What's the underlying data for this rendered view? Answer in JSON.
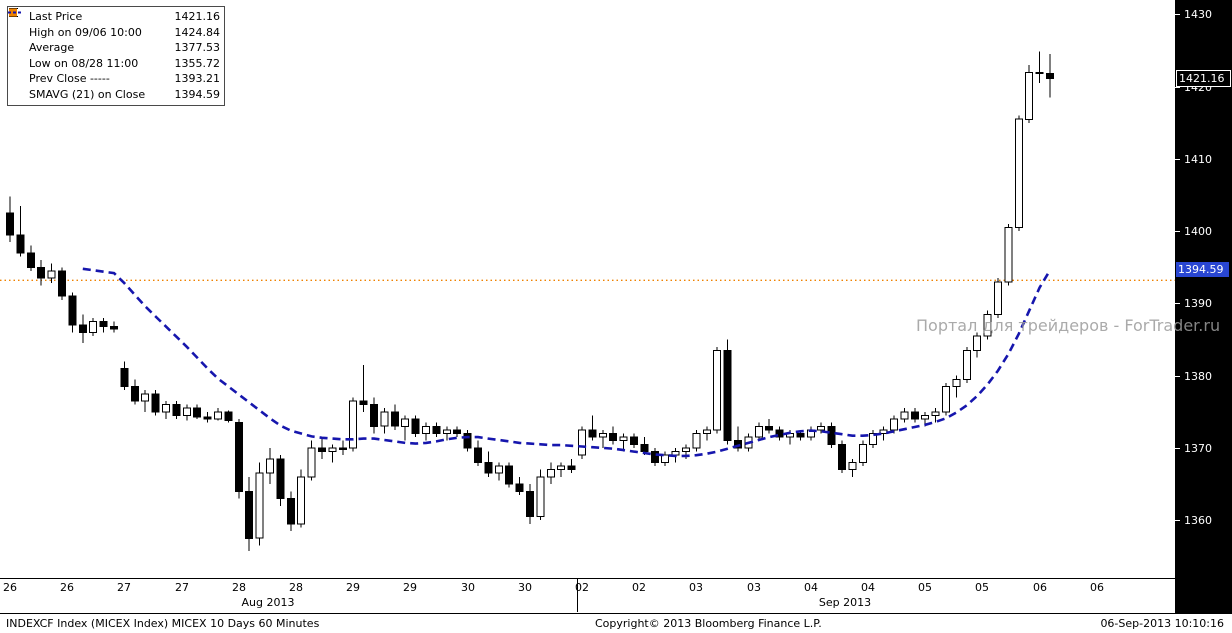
{
  "colors": {
    "up_candle": "#ffffff",
    "down_candle": "#000000",
    "candle_outline": "#000000",
    "prev_close_line": "#ef8200",
    "smavg_line": "#1616ad",
    "axis_bg": "#000000",
    "axis_text": "#ffffff",
    "last_badge_bg": "#000000",
    "smavg_badge_bg": "#2946d2",
    "watermark_text": "#9c9c9c"
  },
  "legend": {
    "rows": [
      {
        "icon": "candle-icon",
        "label": "Last Price",
        "value": "1421.16"
      },
      {
        "icon": "high-icon",
        "label": "High on 09/06 10:00",
        "value": "1424.84"
      },
      {
        "icon": "average-icon",
        "label": "Average",
        "value": "1377.53"
      },
      {
        "icon": "low-icon",
        "label": "Low on 08/28 11:00",
        "value": "1355.72"
      },
      {
        "icon": "prev-close-icon",
        "label": "Prev Close -----",
        "value": "1393.21"
      },
      {
        "icon": "smavg-icon",
        "label": "SMAVG (21) on Close",
        "value": "1394.59"
      }
    ]
  },
  "badges": {
    "last_price": "1421.16",
    "smavg": "1394.59"
  },
  "watermark": "Портал для трейдеров - ForTrader.ru",
  "footer": {
    "left": "INDEXCF Index (MICEX Index) MICEX 10 Days 60 Minutes",
    "center": "Copyright© 2013 Bloomberg Finance L.P.",
    "right": "06-Sep-2013 10:10:16"
  },
  "chart_data": {
    "type": "candlestick",
    "title": "INDEXCF Index (MICEX Index) MICEX 10 Days 60 Minutes",
    "ylim": [
      1352,
      1432
    ],
    "y_ticks": [
      1430,
      1420,
      1410,
      1400,
      1390,
      1380,
      1370,
      1360
    ],
    "last_price": 1421.16,
    "high": {
      "label": "High on 09/06 10:00",
      "value": 1424.84
    },
    "low": {
      "label": "Low on 08/28 11:00",
      "value": 1355.72
    },
    "average": 1377.53,
    "prev_close": 1393.21,
    "smavg_last": 1394.59,
    "x_labels": [
      "26",
      "26",
      "27",
      "27",
      "28",
      "28",
      "29",
      "29",
      "30",
      "30",
      "02",
      "02",
      "03",
      "03",
      "04",
      "04",
      "05",
      "05",
      "06",
      "06"
    ],
    "month_labels": [
      "Aug 2013",
      "Sep 2013"
    ],
    "bars_per_day": 11,
    "candles": [
      [
        1402.5,
        1404.8,
        1398.5,
        1399.5
      ],
      [
        1399.5,
        1403.5,
        1396.5,
        1397.0
      ],
      [
        1397.0,
        1398.0,
        1394.5,
        1395.0
      ],
      [
        1395.0,
        1396.0,
        1392.5,
        1393.5
      ],
      [
        1393.5,
        1395.5,
        1392.8,
        1394.5
      ],
      [
        1394.5,
        1395.0,
        1390.5,
        1391.0
      ],
      [
        1391.0,
        1391.5,
        1386.0,
        1387.0
      ],
      [
        1387.0,
        1388.5,
        1384.5,
        1386.0
      ],
      [
        1386.0,
        1388.0,
        1385.5,
        1387.5
      ],
      [
        1387.5,
        1388.0,
        1386.0,
        1386.8
      ],
      [
        1386.8,
        1387.5,
        1386.0,
        1386.5
      ],
      [
        1381.0,
        1382.0,
        1378.0,
        1378.5
      ],
      [
        1378.5,
        1379.5,
        1376.0,
        1376.5
      ],
      [
        1376.5,
        1378.0,
        1375.0,
        1377.5
      ],
      [
        1377.5,
        1378.0,
        1374.5,
        1375.0
      ],
      [
        1375.0,
        1376.5,
        1374.0,
        1376.0
      ],
      [
        1376.0,
        1376.5,
        1374.0,
        1374.5
      ],
      [
        1374.5,
        1376.0,
        1373.8,
        1375.5
      ],
      [
        1375.5,
        1376.0,
        1374.0,
        1374.3
      ],
      [
        1374.3,
        1375.0,
        1373.5,
        1374.0
      ],
      [
        1374.0,
        1375.5,
        1373.8,
        1375.0
      ],
      [
        1375.0,
        1375.2,
        1373.5,
        1373.8
      ],
      [
        1373.5,
        1374.0,
        1363.0,
        1364.0
      ],
      [
        1364.0,
        1366.0,
        1355.72,
        1357.5
      ],
      [
        1357.5,
        1368.0,
        1356.5,
        1366.5
      ],
      [
        1366.5,
        1370.0,
        1365.0,
        1368.5
      ],
      [
        1368.5,
        1369.0,
        1362.0,
        1363.0
      ],
      [
        1363.0,
        1364.0,
        1358.5,
        1359.5
      ],
      [
        1359.5,
        1367.0,
        1359.0,
        1366.0
      ],
      [
        1366.0,
        1371.0,
        1365.5,
        1370.0
      ],
      [
        1370.0,
        1371.5,
        1368.5,
        1369.5
      ],
      [
        1369.5,
        1370.5,
        1368.0,
        1370.0
      ],
      [
        1370.0,
        1371.0,
        1369.0,
        1369.8
      ],
      [
        1370.0,
        1377.0,
        1369.5,
        1376.5
      ],
      [
        1376.5,
        1381.5,
        1375.0,
        1376.0
      ],
      [
        1376.0,
        1377.0,
        1372.0,
        1373.0
      ],
      [
        1373.0,
        1375.5,
        1372.0,
        1375.0
      ],
      [
        1375.0,
        1376.0,
        1372.5,
        1373.0
      ],
      [
        1373.0,
        1374.5,
        1371.0,
        1374.0
      ],
      [
        1374.0,
        1374.5,
        1371.5,
        1372.0
      ],
      [
        1372.0,
        1373.5,
        1371.0,
        1373.0
      ],
      [
        1373.0,
        1373.5,
        1371.5,
        1372.0
      ],
      [
        1372.0,
        1373.0,
        1371.0,
        1372.5
      ],
      [
        1372.5,
        1373.0,
        1371.5,
        1372.0
      ],
      [
        1372.0,
        1372.5,
        1369.5,
        1370.0
      ],
      [
        1370.0,
        1371.0,
        1367.5,
        1368.0
      ],
      [
        1368.0,
        1369.5,
        1366.0,
        1366.5
      ],
      [
        1366.5,
        1368.0,
        1365.5,
        1367.5
      ],
      [
        1367.5,
        1368.0,
        1364.5,
        1365.0
      ],
      [
        1365.0,
        1366.0,
        1363.5,
        1364.0
      ],
      [
        1364.0,
        1365.0,
        1359.5,
        1360.5
      ],
      [
        1360.5,
        1367.0,
        1360.0,
        1366.0
      ],
      [
        1366.0,
        1368.0,
        1365.0,
        1367.0
      ],
      [
        1367.0,
        1368.0,
        1366.0,
        1367.5
      ],
      [
        1367.5,
        1368.5,
        1366.5,
        1367.0
      ],
      [
        1369.0,
        1373.0,
        1368.5,
        1372.5
      ],
      [
        1372.5,
        1374.5,
        1371.0,
        1371.5
      ],
      [
        1371.5,
        1372.5,
        1370.0,
        1372.0
      ],
      [
        1372.0,
        1373.0,
        1370.5,
        1371.0
      ],
      [
        1371.0,
        1372.0,
        1369.5,
        1371.5
      ],
      [
        1371.5,
        1372.0,
        1370.0,
        1370.5
      ],
      [
        1370.5,
        1371.5,
        1369.0,
        1369.5
      ],
      [
        1369.5,
        1370.0,
        1367.5,
        1368.0
      ],
      [
        1368.0,
        1369.5,
        1367.5,
        1369.0
      ],
      [
        1369.0,
        1370.0,
        1368.0,
        1369.5
      ],
      [
        1369.5,
        1370.5,
        1368.5,
        1370.0
      ],
      [
        1370.0,
        1372.5,
        1369.5,
        1372.0
      ],
      [
        1372.0,
        1373.0,
        1371.0,
        1372.5
      ],
      [
        1372.5,
        1384.0,
        1372.0,
        1383.5
      ],
      [
        1383.5,
        1385.0,
        1370.5,
        1371.0
      ],
      [
        1371.0,
        1373.0,
        1369.5,
        1370.0
      ],
      [
        1370.0,
        1372.0,
        1369.5,
        1371.5
      ],
      [
        1371.5,
        1373.5,
        1371.0,
        1373.0
      ],
      [
        1373.0,
        1374.0,
        1372.0,
        1372.5
      ],
      [
        1372.5,
        1373.0,
        1371.0,
        1371.5
      ],
      [
        1371.5,
        1372.5,
        1370.5,
        1372.0
      ],
      [
        1372.0,
        1372.5,
        1371.0,
        1371.5
      ],
      [
        1371.5,
        1373.0,
        1371.0,
        1372.5
      ],
      [
        1372.5,
        1373.5,
        1372.0,
        1373.0
      ],
      [
        1373.0,
        1373.5,
        1370.0,
        1370.5
      ],
      [
        1370.5,
        1371.0,
        1366.5,
        1367.0
      ],
      [
        1367.0,
        1368.5,
        1366.0,
        1368.0
      ],
      [
        1368.0,
        1371.0,
        1367.5,
        1370.5
      ],
      [
        1370.5,
        1372.5,
        1370.0,
        1372.0
      ],
      [
        1372.0,
        1373.0,
        1371.0,
        1372.5
      ],
      [
        1372.5,
        1374.5,
        1372.0,
        1374.0
      ],
      [
        1374.0,
        1375.5,
        1373.5,
        1375.0
      ],
      [
        1375.0,
        1375.5,
        1373.5,
        1374.0
      ],
      [
        1374.0,
        1375.0,
        1373.0,
        1374.5
      ],
      [
        1374.5,
        1375.5,
        1373.5,
        1375.0
      ],
      [
        1375.0,
        1379.0,
        1374.5,
        1378.5
      ],
      [
        1378.5,
        1380.0,
        1377.0,
        1379.5
      ],
      [
        1379.5,
        1384.0,
        1379.0,
        1383.5
      ],
      [
        1383.5,
        1386.0,
        1382.5,
        1385.5
      ],
      [
        1385.5,
        1389.0,
        1385.0,
        1388.5
      ],
      [
        1388.5,
        1393.5,
        1388.0,
        1393.0
      ],
      [
        1393.0,
        1401.0,
        1392.5,
        1400.5
      ],
      [
        1400.5,
        1416.0,
        1400.0,
        1415.5
      ],
      [
        1415.5,
        1423.0,
        1415.0,
        1422.0
      ],
      [
        1422.0,
        1424.84,
        1420.5,
        1421.8
      ],
      [
        1421.8,
        1424.5,
        1418.5,
        1421.16
      ]
    ],
    "sma": [
      null,
      null,
      null,
      null,
      null,
      null,
      null,
      1394.8,
      1394.6,
      1394.4,
      1394.2,
      1392.8,
      1391.2,
      1389.6,
      1388.2,
      1386.8,
      1385.4,
      1384.0,
      1382.5,
      1381.0,
      1379.6,
      1378.5,
      1377.4,
      1376.3,
      1375.2,
      1374.1,
      1373.1,
      1372.4,
      1372.0,
      1371.6,
      1371.4,
      1371.3,
      1371.2,
      1371.2,
      1371.3,
      1371.3,
      1371.1,
      1370.9,
      1370.7,
      1370.6,
      1370.7,
      1370.9,
      1371.2,
      1371.4,
      1371.5,
      1371.5,
      1371.3,
      1371.1,
      1370.9,
      1370.7,
      1370.6,
      1370.5,
      1370.4,
      1370.4,
      1370.3,
      1370.2,
      1370.1,
      1370.0,
      1369.9,
      1369.7,
      1369.5,
      1369.3,
      1369.1,
      1369.0,
      1368.9,
      1368.9,
      1369.0,
      1369.2,
      1369.5,
      1369.9,
      1370.3,
      1370.7,
      1371.1,
      1371.5,
      1371.8,
      1372.1,
      1372.3,
      1372.4,
      1372.3,
      1372.1,
      1371.9,
      1371.7,
      1371.7,
      1371.8,
      1372.0,
      1372.3,
      1372.6,
      1372.9,
      1373.2,
      1373.6,
      1374.1,
      1374.9,
      1375.9,
      1377.2,
      1378.8,
      1380.7,
      1383.0,
      1385.8,
      1389.0,
      1392.2,
      1394.59
    ]
  }
}
